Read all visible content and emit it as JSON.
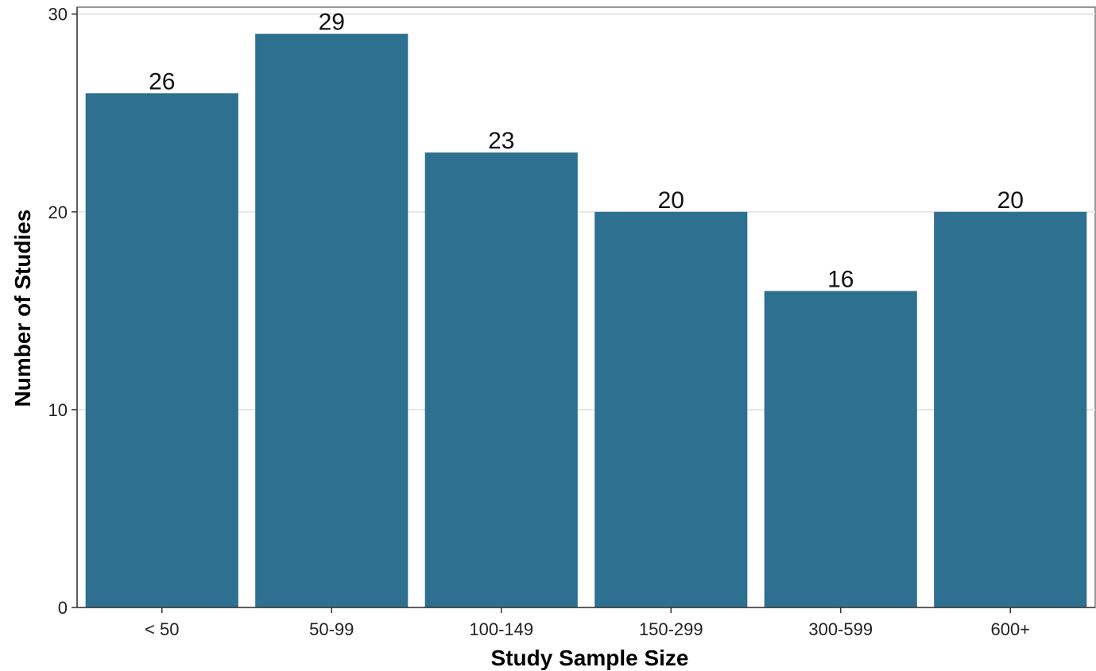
{
  "chart_data": {
    "type": "bar",
    "categories": [
      "< 50",
      "50-99",
      "100-149",
      "150-299",
      "300-599",
      "600+"
    ],
    "values": [
      26,
      29,
      23,
      20,
      16,
      20
    ],
    "data_labels": [
      "26",
      "29",
      "23",
      "20",
      "16",
      "20"
    ],
    "xlabel": "Study Sample Size",
    "ylabel": "Number of Studies",
    "ylim": [
      0,
      30
    ],
    "yticks": [
      0,
      10,
      20,
      30
    ],
    "ytick_labels": [
      "0",
      "10",
      "20",
      "30"
    ],
    "grid": "horizontal major",
    "bar_color": "#2e7090"
  }
}
